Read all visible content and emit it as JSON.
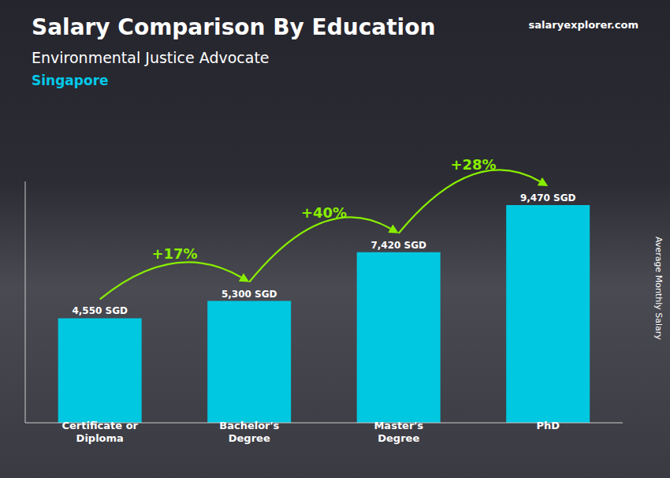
{
  "chart_data": {
    "type": "bar",
    "title": "Salary Comparison By Education",
    "subtitle": "Environmental Justice Advocate",
    "annotations": [
      {
        "text": "Singapore"
      },
      {
        "text": "salaryexplorer.com"
      },
      {
        "text": "+17%",
        "from": "Certificate or\nDiploma",
        "to": "Bachelor's\nDegree"
      },
      {
        "text": "+40%",
        "from": "Bachelor's\nDegree",
        "to": "Master's\nDegree"
      },
      {
        "text": "+28%",
        "from": "Master's\nDegree",
        "to": "PhD"
      }
    ],
    "y_label": "Average Monthly Salary",
    "categories": [
      "Certificate or\nDiploma",
      "Bachelor's\nDegree",
      "Master's\nDegree",
      "PhD"
    ],
    "values": [
      4550,
      5300,
      7420,
      9470
    ],
    "value_labels": [
      "4,550 SGD",
      "5,300 SGD",
      "7,420 SGD",
      "9,470 SGD"
    ],
    "data_labels": true,
    "color": "#00c8e0",
    "ylim": [
      0,
      10500
    ],
    "tick_labels": "x",
    "grid": false
  }
}
